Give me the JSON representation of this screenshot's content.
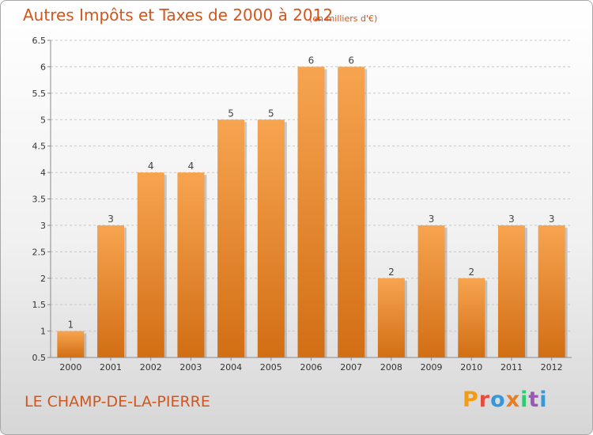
{
  "header": {
    "title": "Autres Impôts et Taxes de 2000 à 2012",
    "unit": "(en milliers d'€)"
  },
  "footer": {
    "commune": "LE CHAMP-DE-LA-PIERRE",
    "logo_text": "Proxiti",
    "logo_colors": [
      "#f39c12",
      "#e74c3c",
      "#3498db",
      "#e67e22",
      "#2ecc71",
      "#9b59b6",
      "#3498db"
    ]
  },
  "colors": {
    "bar_top": "#f7a450",
    "bar_bottom": "#d26e14",
    "bar_shadow": "#8c8c8c",
    "grid": "#c8c8c8",
    "axis": "#8a8a8a"
  },
  "chart_data": {
    "type": "bar",
    "categories": [
      "2000",
      "2001",
      "2002",
      "2003",
      "2004",
      "2005",
      "2006",
      "2007",
      "2008",
      "2009",
      "2010",
      "2011",
      "2012"
    ],
    "values": [
      1,
      3,
      4,
      4,
      5,
      5,
      6,
      6,
      2,
      3,
      2,
      3,
      3
    ],
    "value_labels": [
      "1",
      "3",
      "4",
      "4",
      "5",
      "5",
      "6",
      "6",
      "2",
      "3",
      "2",
      "3",
      "3"
    ],
    "ylim": [
      0.5,
      6.5
    ],
    "yticks": [
      0.5,
      1,
      1.5,
      2,
      2.5,
      3,
      3.5,
      4,
      4.5,
      5,
      5.5,
      6,
      6.5
    ],
    "ytick_labels": [
      "0.5",
      "1",
      "1.5",
      "2",
      "2.5",
      "3",
      "3.5",
      "4",
      "4.5",
      "5",
      "5.5",
      "6",
      "6.5"
    ],
    "grid": "horizontal dashed"
  }
}
